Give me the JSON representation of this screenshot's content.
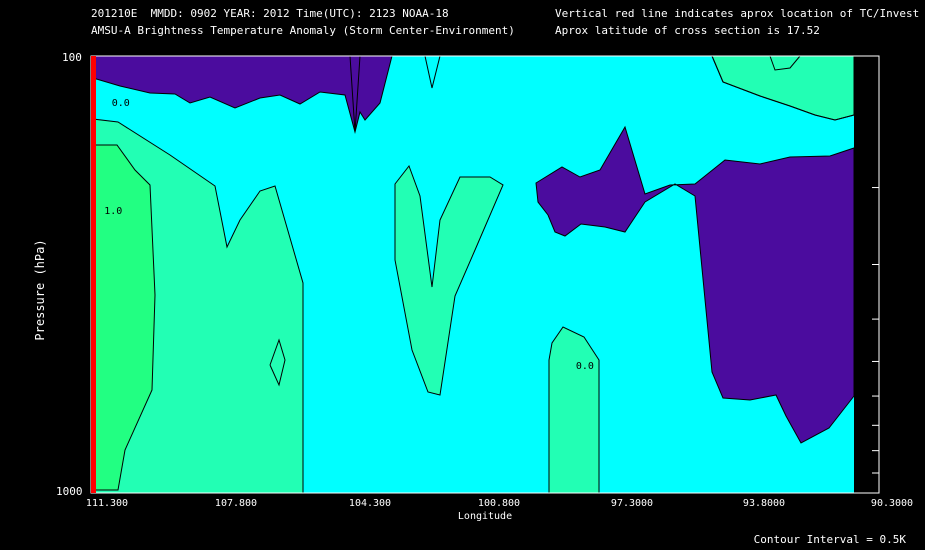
{
  "header": {
    "line1_left": "201210E  MMDD: 0902 YEAR: 2012 Time(UTC): 2123 NOAA-18",
    "line2_left": "AMSU-A Brightness Temperature Anomaly (Storm Center-Environment)",
    "line1_right": "Vertical red line indicates aprox location of TC/Invest",
    "line2_right": "Aprox latitude of cross section is 17.52"
  },
  "footer": {
    "contour_interval": "Contour Interval = 0.5K"
  },
  "colors": {
    "background": "#000000",
    "cyan_0_to_0_5": "#00ffff",
    "seafoam_0_5_to_1": "#22ffb4",
    "green_1_to_1_5": "#22ff82",
    "purple_below_0": "#4b0c9e",
    "tc_line": "#ff0000",
    "contour": "#000000"
  },
  "chart_data": {
    "type": "heatmap",
    "title": "AMSU-A Brightness Temperature Anomaly (Storm Center-Environment)",
    "xlabel": "Longitude",
    "ylabel": "Pressure (hPa)",
    "x_ticks": [
      "111.300",
      "107.800",
      "104.300",
      "100.800",
      "97.3000",
      "93.8000",
      "90.3000"
    ],
    "y_ticks": [
      "100",
      "1000"
    ],
    "xlim": [
      111.3,
      90.3
    ],
    "ylim": [
      1000,
      100
    ],
    "y_scale": "log",
    "contour_interval_K": 0.5,
    "tc_longitude": 111.3,
    "cross_section_latitude": 17.52,
    "contour_labels": [
      {
        "text": "0.0",
        "lon": 110.8,
        "p": 130
      },
      {
        "text": "1.0",
        "lon": 111.0,
        "p": 230
      },
      {
        "text": "0.0",
        "lon": 98.4,
        "p": 520
      },
      {
        "text": "0.0",
        "lon": 90.9,
        "p": 130
      }
    ],
    "regions": [
      {
        "level": "-0.5 to 0",
        "color_key": "purple_below_0",
        "area": "upper levels 111-105E and 104-103E"
      },
      {
        "level": "-0.5 to 0",
        "color_key": "purple_below_0",
        "area": "mid-lower levels 99-91E"
      },
      {
        "level": "0.5 to 1.0",
        "color_key": "seafoam_0_5_to_1",
        "area": "west of 108E, lower levels"
      },
      {
        "level": "1.0 to 1.5",
        "color_key": "green_1_to_1_5",
        "area": "near TC 111-110E, 250-800 hPa"
      },
      {
        "level": "0.5 to 1.0",
        "color_key": "seafoam_0_5_to_1",
        "area": "102-101E, 250-600 hPa"
      },
      {
        "level": "0.5 to 1.0",
        "color_key": "seafoam_0_5_to_1",
        "area": "98.8-98E, 500-1000 hPa"
      },
      {
        "level": "0.5 to 1.0",
        "color_key": "seafoam_0_5_to_1",
        "area": "92-90.5E, 100-120 hPa"
      }
    ]
  }
}
